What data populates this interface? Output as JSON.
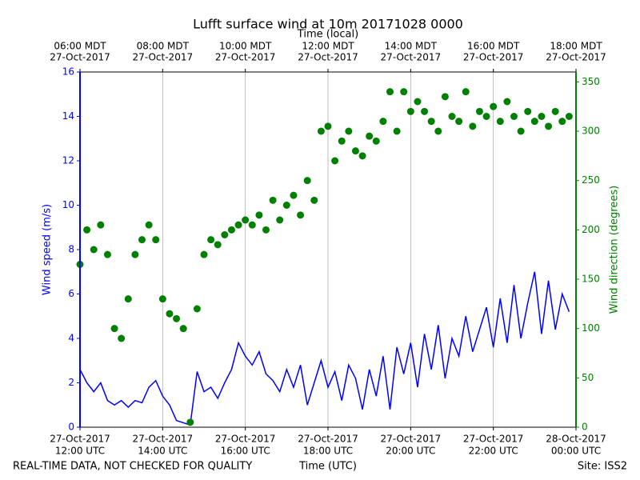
{
  "chart_data": {
    "type": "line-scatter",
    "title": "Lufft surface wind at 10m 20171028 0000",
    "x_label": "Time (UTC)",
    "x2_label": "Time (local)",
    "y_label": "Wind speed (m/s)",
    "y2_label": "Wind direction (degrees)",
    "footer_left": "REAL-TIME DATA, NOT CHECKED FOR QUALITY",
    "footer_right": "Site: ISS2",
    "grid": "x",
    "xlim": [
      "2017-10-27T12:00",
      "2017-10-28T00:00"
    ],
    "xticks": [
      {
        "value": "2017-10-27T12:00",
        "label": [
          "27-Oct-2017",
          "12:00 UTC"
        ]
      },
      {
        "value": "2017-10-27T14:00",
        "label": [
          "27-Oct-2017",
          "14:00 UTC"
        ]
      },
      {
        "value": "2017-10-27T16:00",
        "label": [
          "27-Oct-2017",
          "16:00 UTC"
        ]
      },
      {
        "value": "2017-10-27T18:00",
        "label": [
          "27-Oct-2017",
          "18:00 UTC"
        ]
      },
      {
        "value": "2017-10-27T20:00",
        "label": [
          "27-Oct-2017",
          "20:00 UTC"
        ]
      },
      {
        "value": "2017-10-27T22:00",
        "label": [
          "27-Oct-2017",
          "22:00 UTC"
        ]
      },
      {
        "value": "2017-10-28T00:00",
        "label": [
          "28-Oct-2017",
          "00:00 UTC"
        ]
      }
    ],
    "x2ticks": [
      {
        "value": "2017-10-27T12:00",
        "label": [
          "06:00 MDT",
          "27-Oct-2017"
        ]
      },
      {
        "value": "2017-10-27T14:00",
        "label": [
          "08:00 MDT",
          "27-Oct-2017"
        ]
      },
      {
        "value": "2017-10-27T16:00",
        "label": [
          "10:00 MDT",
          "27-Oct-2017"
        ]
      },
      {
        "value": "2017-10-27T18:00",
        "label": [
          "12:00 MDT",
          "27-Oct-2017"
        ]
      },
      {
        "value": "2017-10-27T20:00",
        "label": [
          "14:00 MDT",
          "27-Oct-2017"
        ]
      },
      {
        "value": "2017-10-27T22:00",
        "label": [
          "16:00 MDT",
          "27-Oct-2017"
        ]
      },
      {
        "value": "2017-10-28T00:00",
        "label": [
          "18:00 MDT",
          "27-Oct-2017"
        ]
      }
    ],
    "ylim": [
      0,
      16
    ],
    "yticks": [
      0,
      2,
      4,
      6,
      8,
      10,
      12,
      14,
      16
    ],
    "y2lim": [
      0,
      360
    ],
    "y2ticks": [
      0,
      50,
      100,
      150,
      200,
      250,
      300,
      350
    ],
    "x": [
      "2017-10-27T12:00",
      "2017-10-27T12:10",
      "2017-10-27T12:20",
      "2017-10-27T12:30",
      "2017-10-27T12:40",
      "2017-10-27T12:50",
      "2017-10-27T13:00",
      "2017-10-27T13:10",
      "2017-10-27T13:20",
      "2017-10-27T13:30",
      "2017-10-27T13:40",
      "2017-10-27T13:50",
      "2017-10-27T14:00",
      "2017-10-27T14:10",
      "2017-10-27T14:20",
      "2017-10-27T14:30",
      "2017-10-27T14:40",
      "2017-10-27T14:50",
      "2017-10-27T15:00",
      "2017-10-27T15:10",
      "2017-10-27T15:20",
      "2017-10-27T15:30",
      "2017-10-27T15:40",
      "2017-10-27T15:50",
      "2017-10-27T16:00",
      "2017-10-27T16:10",
      "2017-10-27T16:20",
      "2017-10-27T16:30",
      "2017-10-27T16:40",
      "2017-10-27T16:50",
      "2017-10-27T17:00",
      "2017-10-27T17:10",
      "2017-10-27T17:20",
      "2017-10-27T17:30",
      "2017-10-27T17:40",
      "2017-10-27T17:50",
      "2017-10-27T18:00",
      "2017-10-27T18:10",
      "2017-10-27T18:20",
      "2017-10-27T18:30",
      "2017-10-27T18:40",
      "2017-10-27T18:50",
      "2017-10-27T19:00",
      "2017-10-27T19:10",
      "2017-10-27T19:20",
      "2017-10-27T19:30",
      "2017-10-27T19:40",
      "2017-10-27T19:50",
      "2017-10-27T20:00",
      "2017-10-27T20:10",
      "2017-10-27T20:20",
      "2017-10-27T20:30",
      "2017-10-27T20:40",
      "2017-10-27T20:50",
      "2017-10-27T21:00",
      "2017-10-27T21:10",
      "2017-10-27T21:20",
      "2017-10-27T21:30",
      "2017-10-27T21:40",
      "2017-10-27T21:50",
      "2017-10-27T22:00",
      "2017-10-27T22:10",
      "2017-10-27T22:20",
      "2017-10-27T22:30",
      "2017-10-27T22:40",
      "2017-10-27T22:50",
      "2017-10-27T23:00",
      "2017-10-27T23:10",
      "2017-10-27T23:20",
      "2017-10-27T23:30",
      "2017-10-27T23:40",
      "2017-10-27T23:50"
    ],
    "series": [
      {
        "name": "Wind speed",
        "color": "#0000ff",
        "mark": "line",
        "values": [
          2.6,
          2.0,
          1.6,
          2.0,
          1.2,
          1.0,
          1.2,
          0.9,
          1.2,
          1.1,
          1.8,
          2.1,
          1.4,
          1.0,
          0.3,
          0.2,
          0.1,
          2.5,
          1.6,
          1.8,
          1.3,
          2.0,
          2.6,
          3.8,
          3.2,
          2.8,
          3.4,
          2.4,
          2.1,
          1.6,
          2.6,
          1.8,
          2.8,
          1.0,
          2.0,
          3.0,
          1.8,
          2.5,
          1.2,
          2.8,
          2.2,
          0.8,
          2.6,
          1.4,
          3.2,
          0.8,
          3.6,
          2.4,
          3.8,
          1.8,
          4.2,
          2.6,
          4.6,
          2.2,
          4.0,
          3.2,
          5.0,
          3.4,
          4.4,
          5.4,
          3.6,
          5.8,
          3.8,
          6.4,
          4.0,
          5.6,
          7.0,
          4.2,
          6.6,
          4.4,
          6.0,
          5.2
        ]
      },
      {
        "name": "Wind direction",
        "color": "#008000",
        "mark": "scatter",
        "axis": "y2",
        "values": [
          165,
          200,
          180,
          205,
          175,
          100,
          90,
          130,
          175,
          190,
          205,
          190,
          130,
          115,
          110,
          100,
          5,
          120,
          175,
          190,
          185,
          195,
          200,
          205,
          210,
          205,
          215,
          200,
          230,
          210,
          225,
          235,
          215,
          250,
          230,
          300,
          305,
          270,
          290,
          300,
          280,
          275,
          295,
          290,
          310,
          340,
          300,
          340,
          320,
          330,
          320,
          310,
          300,
          335,
          315,
          310,
          340,
          305,
          320,
          315,
          325,
          310,
          330,
          315,
          300,
          320,
          310,
          315,
          305,
          320,
          310,
          315
        ]
      }
    ]
  }
}
